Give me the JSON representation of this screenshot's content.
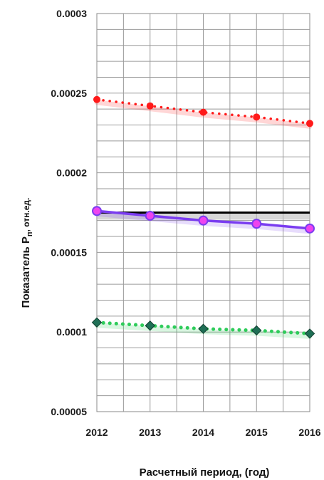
{
  "chart_data": {
    "type": "line",
    "xlabel": "Расчетный период, (год)",
    "ylabel_main": "Показатель P",
    "ylabel_sub": "п",
    "ylabel_unit": ", отн.ед.",
    "x": [
      "2012",
      "2013",
      "2014",
      "2015",
      "2016"
    ],
    "ylim": [
      5e-05,
      0.0003
    ],
    "yticks": [
      5e-05,
      0.0001,
      0.00015,
      0.0002,
      0.00025,
      0.0003
    ],
    "ytick_labels": [
      "0.00005",
      "0.0001",
      "0.00015",
      "0.0002",
      "0.00025",
      "0.0003"
    ],
    "grid": true,
    "series": [
      {
        "color": "#ff1a1a",
        "style": "dotted",
        "marker": "circle",
        "values": [
          0.000246,
          0.000242,
          0.000238,
          0.000235,
          0.000231
        ]
      },
      {
        "color": "#000000",
        "style": "solid",
        "marker": "none",
        "values": [
          0.000175,
          0.000175,
          0.000175,
          0.000175,
          0.000175
        ]
      },
      {
        "color": "#7a3cf0",
        "style": "solid",
        "marker": "circle",
        "marker_color": "#ee44ee",
        "values": [
          0.000176,
          0.000173,
          0.00017,
          0.000168,
          0.000165
        ]
      },
      {
        "color": "#2ecc5a",
        "style": "dotted",
        "marker": "diamond",
        "marker_color": "#1f6f55",
        "values": [
          0.000106,
          0.000104,
          0.000102,
          0.000101,
          9.9e-05
        ]
      }
    ]
  }
}
